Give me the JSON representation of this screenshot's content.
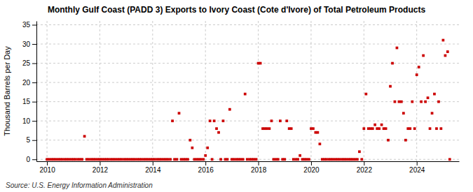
{
  "chart_data": {
    "type": "scatter",
    "title": "Monthly Gulf Coast (PADD 3) Exports to Ivory Coast (Cote d'Ivore) of Total Petroleum Products",
    "ylabel": "Thousand Barrels per Day",
    "source": "Source: U.S. Energy Information Administration",
    "color": "#cc0000",
    "marker": "square",
    "grid": true,
    "xlim": [
      2009.6,
      2025.6
    ],
    "ylim": [
      -0.5,
      36
    ],
    "xticks": [
      2010,
      2012,
      2014,
      2016,
      2018,
      2020,
      2022,
      2024
    ],
    "yticks": [
      0,
      5,
      10,
      15,
      20,
      25,
      30,
      35
    ],
    "x": [
      2010.0,
      2010.08,
      2010.17,
      2010.25,
      2010.33,
      2010.42,
      2010.5,
      2010.58,
      2010.67,
      2010.75,
      2010.83,
      2010.92,
      2011.0,
      2011.08,
      2011.17,
      2011.25,
      2011.33,
      2011.42,
      2011.5,
      2011.58,
      2011.67,
      2011.75,
      2011.83,
      2011.92,
      2012.0,
      2012.08,
      2012.17,
      2012.25,
      2012.33,
      2012.42,
      2012.5,
      2012.58,
      2012.67,
      2012.75,
      2012.83,
      2012.92,
      2013.0,
      2013.08,
      2013.17,
      2013.25,
      2013.33,
      2013.42,
      2013.5,
      2013.58,
      2013.67,
      2013.75,
      2013.83,
      2013.92,
      2014.0,
      2014.08,
      2014.17,
      2014.25,
      2014.33,
      2014.42,
      2014.5,
      2014.58,
      2014.67,
      2014.75,
      2014.83,
      2014.92,
      2015.0,
      2015.08,
      2015.17,
      2015.25,
      2015.33,
      2015.42,
      2015.5,
      2015.58,
      2015.67,
      2015.75,
      2015.83,
      2015.92,
      2016.0,
      2016.08,
      2016.17,
      2016.25,
      2016.33,
      2016.42,
      2016.5,
      2016.58,
      2016.67,
      2016.75,
      2016.83,
      2016.92,
      2017.0,
      2017.08,
      2017.17,
      2017.25,
      2017.33,
      2017.42,
      2017.5,
      2017.58,
      2017.67,
      2017.75,
      2017.83,
      2017.92,
      2018.0,
      2018.08,
      2018.17,
      2018.25,
      2018.33,
      2018.42,
      2018.5,
      2018.58,
      2018.67,
      2018.75,
      2018.83,
      2018.92,
      2019.0,
      2019.08,
      2019.17,
      2019.25,
      2019.33,
      2019.42,
      2019.5,
      2019.58,
      2019.67,
      2019.75,
      2019.83,
      2019.92,
      2020.0,
      2020.08,
      2020.17,
      2020.25,
      2020.33,
      2020.42,
      2020.5,
      2020.58,
      2020.67,
      2020.75,
      2020.83,
      2020.92,
      2021.0,
      2021.08,
      2021.17,
      2021.25,
      2021.33,
      2021.42,
      2021.5,
      2021.58,
      2021.67,
      2021.75,
      2021.83,
      2021.92,
      2022.0,
      2022.08,
      2022.17,
      2022.25,
      2022.33,
      2022.42,
      2022.5,
      2022.58,
      2022.67,
      2022.75,
      2022.83,
      2022.92,
      2023.0,
      2023.08,
      2023.17,
      2023.25,
      2023.33,
      2023.42,
      2023.5,
      2023.58,
      2023.67,
      2023.75,
      2023.83,
      2023.92,
      2024.0,
      2024.08,
      2024.17,
      2024.25,
      2024.33,
      2024.42,
      2024.5,
      2024.58,
      2024.67,
      2024.75,
      2024.83,
      2024.92,
      2025.0,
      2025.08,
      2025.17,
      2025.25
    ],
    "values": [
      0,
      0,
      0,
      0,
      0,
      0,
      0,
      0,
      0,
      0,
      0,
      0,
      0,
      0,
      0,
      0,
      0,
      6,
      0,
      0,
      0,
      0,
      0,
      0,
      0,
      0,
      0,
      0,
      0,
      0,
      0,
      0,
      0,
      0,
      0,
      0,
      0,
      0,
      0,
      0,
      0,
      0,
      0,
      0,
      0,
      0,
      0,
      0,
      0,
      0,
      0,
      0,
      0,
      0,
      0,
      0,
      0,
      10,
      0,
      0,
      12,
      0,
      0,
      0,
      0,
      5,
      3,
      0,
      0,
      0,
      0,
      0,
      1,
      3,
      10,
      0,
      10,
      8,
      7,
      0,
      10,
      0,
      0,
      13,
      0,
      0,
      0,
      0,
      0,
      0,
      17,
      0,
      0,
      0,
      0,
      0,
      25,
      25,
      8,
      8,
      8,
      8,
      10,
      0,
      0,
      0,
      10,
      0,
      0,
      10,
      8,
      8,
      0,
      0,
      0,
      1,
      0,
      0,
      0,
      0,
      8,
      8,
      7,
      7,
      4,
      0,
      0,
      0,
      0,
      0,
      0,
      0,
      0,
      0,
      0,
      0,
      0,
      0,
      0,
      0,
      0,
      0,
      2,
      0,
      8,
      17,
      8,
      8,
      8,
      9,
      8,
      8,
      9,
      8,
      8,
      5,
      19,
      25,
      15,
      29,
      15,
      15,
      12,
      5,
      8,
      8,
      15,
      8,
      22,
      24,
      15,
      27,
      15,
      16,
      8,
      12,
      17,
      8,
      15,
      8,
      31,
      27,
      28,
      0
    ]
  }
}
